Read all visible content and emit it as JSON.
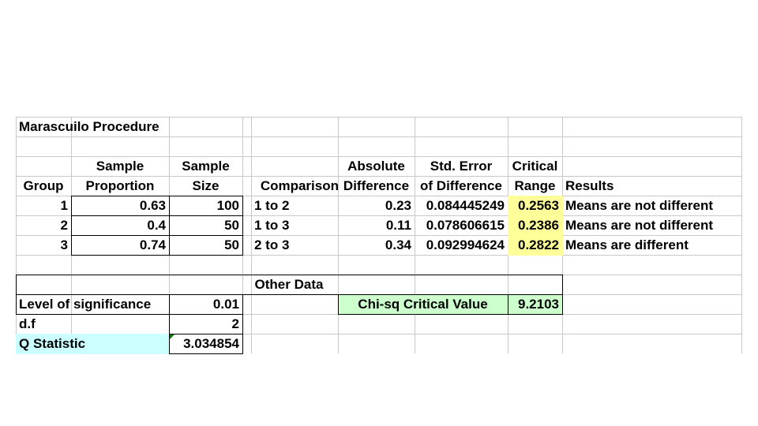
{
  "title": "Marascuilo Procedure",
  "headers": {
    "group": "Group",
    "sample_proportion": [
      "Sample",
      "Proportion"
    ],
    "sample_size": [
      "Sample",
      "Size"
    ],
    "comparison": "Comparison",
    "absolute_difference": [
      "Absolute",
      "Difference"
    ],
    "std_error": [
      "Std. Error",
      "of Difference"
    ],
    "critical_range": [
      "Critical",
      "Range"
    ],
    "results": "Results"
  },
  "groups": [
    {
      "group": "1",
      "proportion": "0.63",
      "size": "100"
    },
    {
      "group": "2",
      "proportion": "0.4",
      "size": "50"
    },
    {
      "group": "3",
      "proportion": "0.74",
      "size": "50"
    }
  ],
  "comparisons": [
    {
      "pair": "1 to 2",
      "abs_diff": "0.23",
      "std_error": "0.084445249",
      "critical_range": "0.2563",
      "result": "Means are not different"
    },
    {
      "pair": "1 to 3",
      "abs_diff": "0.11",
      "std_error": "0.078606615",
      "critical_range": "0.2386",
      "result": "Means are not different"
    },
    {
      "pair": "2 to 3",
      "abs_diff": "0.34",
      "std_error": "0.092994624",
      "critical_range": "0.2822",
      "result": "Means are different"
    }
  ],
  "other_data": {
    "heading": "Other Data",
    "level_of_significance_label": "Level of significance",
    "level_of_significance": "0.01",
    "df_label": "d.f",
    "df": "2",
    "q_statistic_label": "Q Statistic",
    "q_statistic": "3.034854",
    "chi_sq_label": "Chi-sq Critical Value",
    "chi_sq_value": "9.2103"
  },
  "colors": {
    "critical_range_fill": "#ffff99",
    "chi_sq_fill": "#ccffcc",
    "q_statistic_fill": "#ccffff",
    "gridline": "#c8c8c8"
  }
}
